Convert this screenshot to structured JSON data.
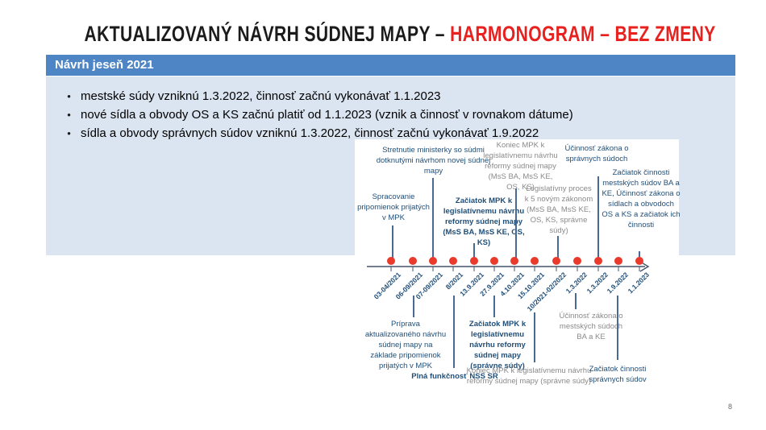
{
  "title": {
    "part_black": "AKTUALIZOVANÝ NÁVRH SÚDNEJ MAPY – ",
    "part_red": "HARMONOGRAM – BEZ ZMENY"
  },
  "section_header": {
    "label": "Návrh jeseň 2021"
  },
  "bullets": [
    "mestské súdy vzniknú 1.3.2022, činnosť začnú vykonávať 1.1.2023",
    "nové sídla a obvody OS a KS začnú platiť od 1.1.2023 (vznik a činnosť v rovnakom dátume)",
    "sídla a obvody správnych súdov  vzniknú 1.3.2022, činnosť začnú vykonávať 1.9.2022"
  ],
  "timeline": {
    "dates": [
      "03-04/2021",
      "06-09/2021",
      "07-09/2021",
      "8/2021",
      "13.9.2021",
      "27.9.2021",
      "4.10.2021",
      "15.10.2021",
      "10/2021-02/2022",
      "1.3.2022",
      "1.3.2022",
      "1.9.2022",
      "1.1.2023"
    ],
    "top_annotations": [
      {
        "text": "Spracovanie pripomienok prijatých v MPK",
        "style": "blue"
      },
      {
        "text": "Stretnutie ministerky so súdmi dotknutými návrhom novej súdnej mapy",
        "style": "blue"
      },
      {
        "text": "Začiatok MPK k legislatívnemu návrhu reformy súdnej mapy (MsS BA, MsS KE, OS, KS)",
        "style": "blue-bold"
      },
      {
        "text": "Koniec MPK k legislatívnemu návrhu reformy súdnej mapy (MsS BA, MsS KE, OS, KS)",
        "style": "gray"
      },
      {
        "text": "Legislatívny proces k 5 novým zákonom (MsS BA, MsS KE, OS, KS, správne súdy)",
        "style": "gray"
      },
      {
        "text": "Účinnosť zákona o správnych súdoch",
        "style": "blue"
      },
      {
        "text": "Začiatok činnosti mestských súdov BA a KE, Účinnosť zákona o sídlach a obvodoch OS a KS a začiatok ich činnosti",
        "style": "blue"
      }
    ],
    "bottom_annotations": [
      {
        "text": "Príprava aktualizovaného návrhu súdnej mapy na základe pripomienok prijatých v MPK",
        "style": "blue"
      },
      {
        "text": "Plná funkčnosť NSS SR",
        "style": "blue-bold"
      },
      {
        "text": "Začiatok MPK k legislatívnemu návrhu reformy súdnej mapy (správne súdy)",
        "style": "blue-bold"
      },
      {
        "text": "Koniec MPK k legislatívnemu návrhu reformy súdnej mapy (správne súdy)",
        "style": "gray"
      },
      {
        "text": "Účinnosť zákona o mestských súdoch BA a KE",
        "style": "gray"
      },
      {
        "text": "Začiatok činnosti správnych súdov",
        "style": "blue"
      }
    ],
    "colors": {
      "dot": "#ea3a2c",
      "axis": "#44546a",
      "connector": "#4a6a96",
      "annotation_blue": "#1f4e79",
      "annotation_gray": "#8a8a8a"
    }
  },
  "footer": {
    "page_number": "8"
  }
}
